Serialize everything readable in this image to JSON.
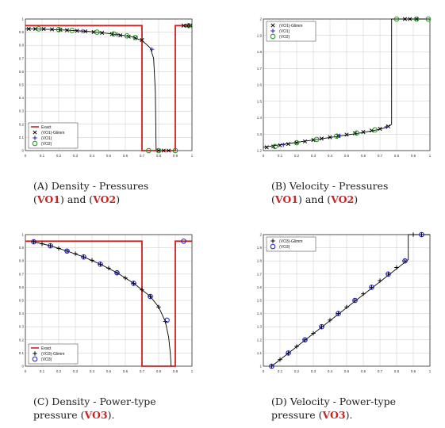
{
  "colors": {
    "exact": "#d21f1f",
    "glimm": "#000000",
    "vo1": "#1a1ad6",
    "vo2": "#1a9a1a",
    "vo3": "#1a1ad6",
    "grid": "#c8c8c8"
  },
  "chart_data": [
    {
      "id": "A",
      "type": "line",
      "xlim": [
        0,
        1
      ],
      "ylim": [
        0,
        1
      ],
      "xticks": [
        "0",
        "0.1",
        "0.2",
        "0.3",
        "0.4",
        "0.5",
        "0.6",
        "0.7",
        "0.8",
        "0.9",
        "1"
      ],
      "yticks": [
        "0",
        "0.1",
        "0.2",
        "0.3",
        "0.4",
        "0.5",
        "0.6",
        "0.7",
        "0.8",
        "0.9",
        "1"
      ],
      "grid": true,
      "legend_position": "bottom-left",
      "legend": [
        "Exact",
        "(VO1)-Glimm",
        "(VO1)",
        "(VO2)"
      ],
      "exact": {
        "x": [
          0,
          0.7,
          0.7,
          0.9,
          0.9,
          1
        ],
        "y": [
          0.95,
          0.95,
          0,
          0,
          0.95,
          0.95
        ]
      },
      "glimm_curve": {
        "x": [
          0,
          0.1,
          0.2,
          0.3,
          0.4,
          0.5,
          0.6,
          0.65,
          0.7,
          0.72,
          0.75,
          0.77,
          0.78,
          0.785
        ],
        "y": [
          0.925,
          0.923,
          0.918,
          0.912,
          0.903,
          0.89,
          0.873,
          0.862,
          0.835,
          0.815,
          0.78,
          0.7,
          0.45,
          0
        ]
      },
      "glimm_markers": {
        "x": [
          0.02,
          0.06,
          0.11,
          0.16,
          0.21,
          0.25,
          0.31,
          0.36,
          0.41,
          0.46,
          0.52,
          0.57,
          0.62,
          0.66,
          0.7,
          0.8,
          0.83,
          0.86,
          0.95,
          0.97,
          0.99
        ],
        "y": [
          0.925,
          0.925,
          0.924,
          0.921,
          0.918,
          0.915,
          0.911,
          0.906,
          0.901,
          0.895,
          0.885,
          0.876,
          0.866,
          0.856,
          0.84,
          0,
          0,
          0,
          0.95,
          0.95,
          0.95
        ]
      },
      "vo1_markers": {
        "x": [
          0.34,
          0.55,
          0.76
        ],
        "y": [
          0.908,
          0.882,
          0.77
        ]
      },
      "vo2_markers": {
        "x": [
          0.08,
          0.2,
          0.28,
          0.43,
          0.53,
          0.61,
          0.66,
          0.74,
          0.8,
          0.9,
          0.98
        ],
        "y": [
          0.925,
          0.92,
          0.913,
          0.9,
          0.887,
          0.872,
          0.86,
          0,
          0,
          0,
          0.95
        ]
      }
    },
    {
      "id": "B",
      "type": "line",
      "xlim": [
        0,
        1
      ],
      "ylim": [
        1.2,
        2
      ],
      "xticks": [
        "0",
        "0.1",
        "0.2",
        "0.3",
        "0.4",
        "0.5",
        "0.6",
        "0.7",
        "0.8",
        "0.9",
        "1"
      ],
      "yticks": [
        "1.2",
        "1.3",
        "1.4",
        "1.5",
        "1.6",
        "1.7",
        "1.8",
        "1.9",
        "2"
      ],
      "grid": true,
      "legend_position": "top-left",
      "legend": [
        "(VO1)-Glimm",
        "(VO1)",
        "(VO2)"
      ],
      "glimm_curve": {
        "x": [
          0,
          0.1,
          0.2,
          0.3,
          0.4,
          0.5,
          0.6,
          0.7,
          0.75,
          0.77,
          0.77,
          1
        ],
        "y": [
          1.22,
          1.235,
          1.25,
          1.265,
          1.28,
          1.295,
          1.31,
          1.33,
          1.345,
          1.36,
          2,
          2
        ]
      },
      "glimm_markers": {
        "x": [
          0.02,
          0.06,
          0.1,
          0.15,
          0.2,
          0.25,
          0.3,
          0.35,
          0.4,
          0.45,
          0.5,
          0.55,
          0.6,
          0.65,
          0.7,
          0.75,
          0.85,
          0.88,
          0.92
        ],
        "y": [
          1.22,
          1.225,
          1.232,
          1.24,
          1.248,
          1.256,
          1.265,
          1.273,
          1.281,
          1.289,
          1.297,
          1.305,
          1.313,
          1.322,
          1.332,
          1.347,
          2,
          2,
          2
        ]
      },
      "vo1_markers": {
        "x": [
          0.12,
          0.46,
          0.74
        ],
        "y": [
          1.235,
          1.29,
          1.345
        ]
      },
      "vo2_markers": {
        "x": [
          0.07,
          0.2,
          0.32,
          0.44,
          0.56,
          0.67,
          0.8,
          0.92,
          0.99
        ],
        "y": [
          1.225,
          1.248,
          1.268,
          1.288,
          1.307,
          1.326,
          2,
          2,
          2
        ]
      }
    },
    {
      "id": "C",
      "type": "line",
      "xlim": [
        0,
        1
      ],
      "ylim": [
        0,
        1
      ],
      "xticks": [
        "0",
        "0.1",
        "0.2",
        "0.3",
        "0.4",
        "0.5",
        "0.6",
        "0.7",
        "0.8",
        "0.9",
        "1"
      ],
      "yticks": [
        "0",
        "0.1",
        "0.2",
        "0.3",
        "0.4",
        "0.5",
        "0.6",
        "0.7",
        "0.8",
        "0.9",
        "1"
      ],
      "grid": true,
      "legend_position": "bottom-left",
      "legend": [
        "Exact",
        "(VO3)-Glimm",
        "(VO3)"
      ],
      "exact": {
        "x": [
          0,
          0.7,
          0.7,
          0.9,
          0.9,
          1
        ],
        "y": [
          0.95,
          0.95,
          0,
          0,
          0.95,
          0.95
        ]
      },
      "glimm_curve": {
        "x": [
          0.05,
          0.15,
          0.25,
          0.35,
          0.45,
          0.55,
          0.65,
          0.75,
          0.8,
          0.84,
          0.86,
          0.87,
          0.875
        ],
        "y": [
          0.945,
          0.915,
          0.875,
          0.83,
          0.775,
          0.71,
          0.63,
          0.53,
          0.45,
          0.34,
          0.22,
          0.1,
          0
        ]
      },
      "glimm_markers": {
        "x": [
          0.05,
          0.1,
          0.15,
          0.2,
          0.25,
          0.3,
          0.35,
          0.4,
          0.45,
          0.5,
          0.55,
          0.6,
          0.65,
          0.7,
          0.75,
          0.8,
          0.84
        ],
        "y": [
          0.945,
          0.93,
          0.915,
          0.895,
          0.875,
          0.855,
          0.83,
          0.805,
          0.775,
          0.745,
          0.71,
          0.67,
          0.63,
          0.58,
          0.53,
          0.45,
          0.34
        ]
      },
      "vo3_markers": {
        "x": [
          0.05,
          0.15,
          0.25,
          0.35,
          0.45,
          0.55,
          0.65,
          0.75,
          0.85,
          0.95
        ],
        "y": [
          0.945,
          0.915,
          0.875,
          0.83,
          0.775,
          0.71,
          0.63,
          0.53,
          0.35,
          0.95
        ]
      }
    },
    {
      "id": "D",
      "type": "line",
      "xlim": [
        0,
        1
      ],
      "ylim": [
        1,
        2
      ],
      "xticks": [
        "0",
        "0.1",
        "0.2",
        "0.3",
        "0.4",
        "0.5",
        "0.6",
        "0.7",
        "0.8",
        "0.9",
        "1"
      ],
      "yticks": [
        "1",
        "1.1",
        "1.2",
        "1.3",
        "1.4",
        "1.5",
        "1.6",
        "1.7",
        "1.8",
        "1.9",
        "2"
      ],
      "grid": true,
      "legend_position": "top-left",
      "legend": [
        "(VO3)-Glimm",
        "(VO3)"
      ],
      "glimm_curve": {
        "x": [
          0.05,
          0.86,
          0.87,
          0.87,
          1
        ],
        "y": [
          1.0,
          1.8,
          1.81,
          2,
          2
        ]
      },
      "glimm_markers": {
        "x": [
          0.05,
          0.1,
          0.15,
          0.2,
          0.25,
          0.3,
          0.35,
          0.4,
          0.45,
          0.5,
          0.55,
          0.6,
          0.65,
          0.7,
          0.75,
          0.8,
          0.85,
          0.9,
          0.95
        ],
        "y": [
          1.0,
          1.05,
          1.1,
          1.15,
          1.2,
          1.25,
          1.3,
          1.35,
          1.4,
          1.45,
          1.5,
          1.55,
          1.6,
          1.65,
          1.7,
          1.75,
          1.8,
          2,
          2
        ]
      },
      "vo3_markers": {
        "x": [
          0.05,
          0.15,
          0.25,
          0.35,
          0.45,
          0.55,
          0.65,
          0.75,
          0.85,
          0.95
        ],
        "y": [
          1.0,
          1.1,
          1.2,
          1.3,
          1.4,
          1.5,
          1.6,
          1.7,
          1.8,
          2
        ]
      }
    }
  ],
  "captions": {
    "A": {
      "tag": "(A)",
      "pre": " Density - Pressures ",
      "b1": "VO1",
      "mid": ") and (",
      "b2": "VO2",
      "end": ")"
    },
    "B": {
      "tag": "(B)",
      "pre": " Velocity - Pressures ",
      "b1": "VO1",
      "mid": ") and (",
      "b2": "VO2",
      "end": ")"
    },
    "C": {
      "tag": "(C)",
      "pre": " Density - Power-type pressure (",
      "b1": "VO3",
      "end": ")."
    },
    "D": {
      "tag": "(D)",
      "pre": " Velocity - Power-type pressure (",
      "b1": "VO3",
      "end": ")."
    }
  }
}
